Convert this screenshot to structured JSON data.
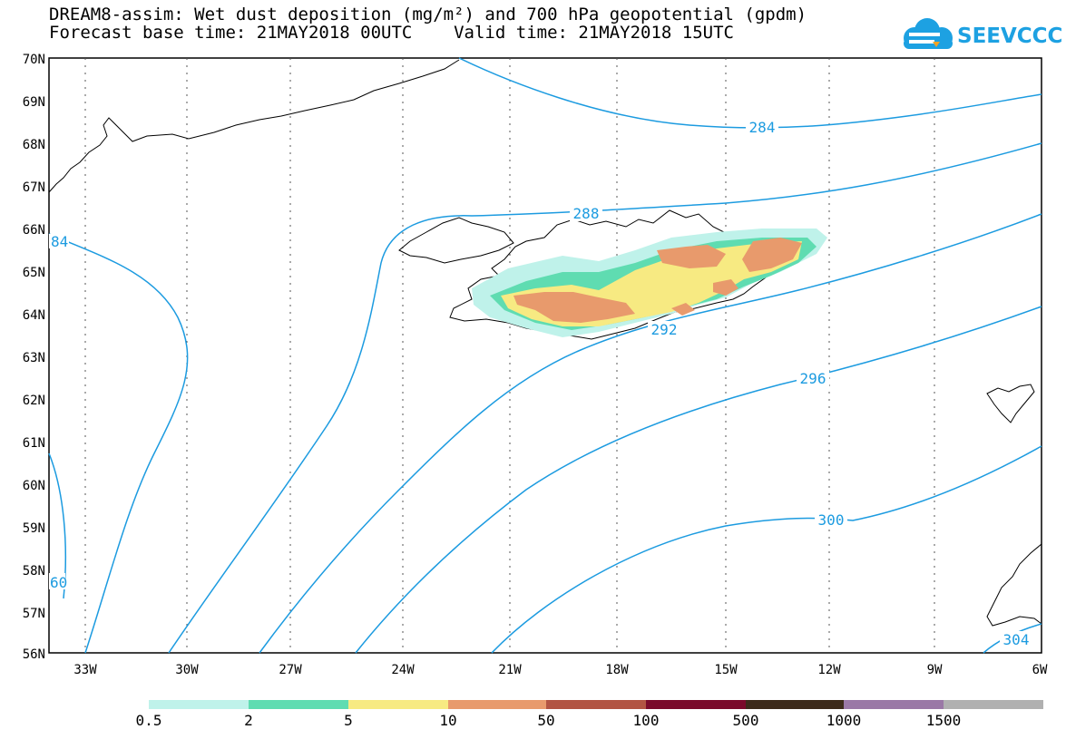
{
  "header": {
    "title_line1": "DREAM8-assim: Wet dust deposition (mg/m²) and 700 hPa geopotential (gpdm)",
    "title_line2": "Forecast base time: 21MAY2018 00UTC    Valid time: 21MAY2018 15UTC",
    "logo_text": "SEEVCCC"
  },
  "map": {
    "lat_labels": [
      "70N",
      "69N",
      "68N",
      "67N",
      "66N",
      "65N",
      "64N",
      "63N",
      "62N",
      "61N",
      "60N",
      "59N",
      "58N",
      "57N",
      "56N"
    ],
    "lon_labels": [
      "33W",
      "30W",
      "27W",
      "24W",
      "21W",
      "18W",
      "15W",
      "12W",
      "9W",
      "6W"
    ],
    "contour_labels": [
      "284",
      "288",
      "292",
      "296",
      "300",
      "84",
      "60",
      "304"
    ],
    "colors": {
      "contour": "#1c9be0",
      "coast": "#000000"
    }
  },
  "legend": {
    "labels": [
      "0.5",
      "2",
      "5",
      "10",
      "50",
      "100",
      "500",
      "1000",
      "1500"
    ],
    "colors": [
      "#bff2ea",
      "#5fdcb1",
      "#f7ea82",
      "#e89a6c",
      "#b25443",
      "#7a0a2b",
      "#3c2a1a",
      "#9a78a6",
      "#b0b0b0"
    ]
  }
}
